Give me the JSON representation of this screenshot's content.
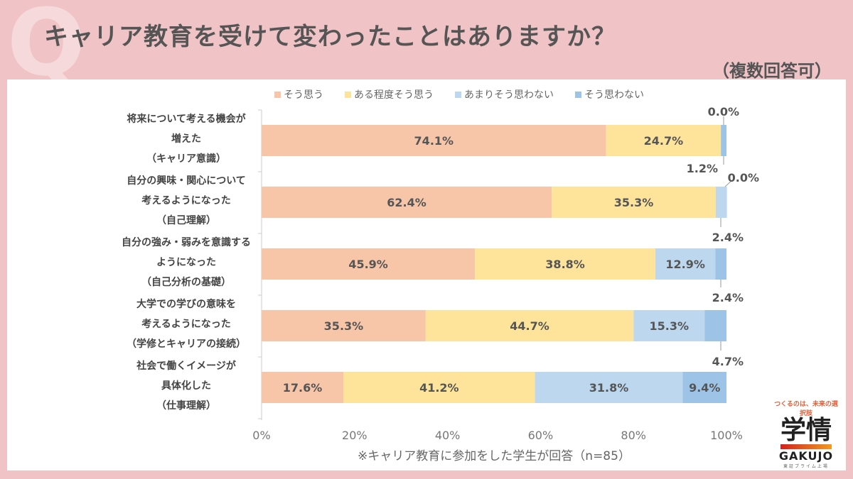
{
  "header": {
    "q_mark": "Q",
    "title": "キャリア教育を受けて変わったことはありますか？",
    "note": "（複数回答可）"
  },
  "chart_data": {
    "type": "bar",
    "orientation": "horizontal",
    "stacked": true,
    "categories": [
      [
        "将来について考える機会が",
        "増えた",
        "（キャリア意識）"
      ],
      [
        "自分の興味・関心について",
        "考えるようになった",
        "（自己理解）"
      ],
      [
        "自分の強み・弱みを意識する",
        "ようになった",
        "（自己分析の基礎）"
      ],
      [
        "大学での学びの意味を",
        "考えるようになった",
        "（学修とキャリアの接続）"
      ],
      [
        "社会で働くイメージが",
        "具体化した",
        "（仕事理解）"
      ]
    ],
    "series": [
      {
        "name": "そう思う",
        "color": "#f7c6a8",
        "values": [
          74.1,
          62.4,
          45.9,
          35.3,
          17.6
        ]
      },
      {
        "name": "ある程度そう思う",
        "color": "#fde49a",
        "values": [
          24.7,
          35.3,
          38.8,
          44.7,
          41.2
        ]
      },
      {
        "name": "あまりそう思わない",
        "color": "#bdd7ee",
        "values": [
          0.0,
          2.4,
          12.9,
          15.3,
          31.8
        ]
      },
      {
        "name": "そう思わない",
        "color": "#9dc3e6",
        "values": [
          1.2,
          0.0,
          2.4,
          4.7,
          9.4
        ]
      }
    ],
    "xlim": [
      0,
      100
    ],
    "xticks": [
      "0%",
      "20%",
      "40%",
      "60%",
      "80%",
      "100%"
    ],
    "legend": "top",
    "grid": false
  },
  "footnote": "※キャリア教育に参加をした学生が回答（n=85）",
  "logo": {
    "tagline": "つくるのは、未来の選択肢",
    "kanji": "学情",
    "en": "GAKUJO",
    "sub": "東証プライム上場"
  }
}
